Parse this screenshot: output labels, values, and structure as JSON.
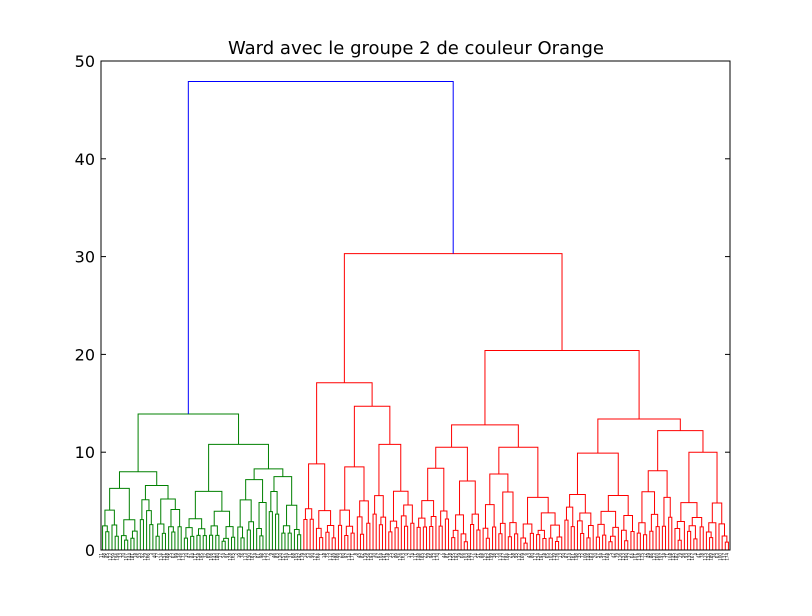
{
  "chart_data": {
    "type": "dendrogram",
    "title": "Ward avec le groupe 2 de couleur Orange",
    "xlabel": "",
    "ylabel": "",
    "ylim": [
      0,
      50
    ],
    "y_ticks": [
      0,
      10,
      20,
      30,
      40,
      50
    ],
    "grid": false,
    "colors": {
      "root_link": "#0000ff",
      "cluster_1": "#008000",
      "cluster_2": "#ff0000",
      "axes": "#000000"
    },
    "leaf_count": 200,
    "clusters": [
      {
        "color_key": "cluster_1",
        "leaf_range": [
          0,
          64
        ],
        "merges": [
          {
            "height": 13.9,
            "children": [
              "cluster_1.A",
              "cluster_1.B"
            ]
          },
          {
            "height": 10.8,
            "children": [
              "cluster_1.B1",
              "cluster_1.B2"
            ]
          },
          {
            "height": 8.0,
            "children": [
              "cluster_1.A1",
              "cluster_1.A2"
            ]
          },
          {
            "height": 8.3,
            "children": [
              "cluster_1.B2a",
              "cluster_1.B2b"
            ]
          }
        ]
      },
      {
        "color_key": "cluster_2",
        "leaf_range": [
          64,
          200
        ],
        "merges": [
          {
            "height": 30.3,
            "children": [
              "cluster_2.A",
              "cluster_2.B"
            ]
          },
          {
            "height": 20.4,
            "children": [
              "cluster_2.B1",
              "cluster_2.B2"
            ]
          },
          {
            "height": 17.1,
            "children": [
              "cluster_2.A1",
              "cluster_2.A2"
            ]
          },
          {
            "height": 14.7,
            "children": [
              "cluster_2.A2a",
              "cluster_2.A2b"
            ]
          },
          {
            "height": 13.4,
            "children": [
              "cluster_2.B2a",
              "cluster_2.B2b"
            ]
          },
          {
            "height": 12.8,
            "children": [
              "cluster_2.B1a",
              "cluster_2.B1b"
            ]
          },
          {
            "height": 12.2,
            "children": [
              "cluster_2.B2b1",
              "cluster_2.B2b2"
            ]
          },
          {
            "height": 10.8,
            "children": [
              "cluster_2.A2b1",
              "cluster_2.A2b2"
            ]
          },
          {
            "height": 10.5,
            "children": [
              "cluster_2.B1a1",
              "cluster_2.B1a2"
            ]
          },
          {
            "height": 10.5,
            "children": [
              "cluster_2.B1b1",
              "cluster_2.B1b2"
            ]
          },
          {
            "height": 9.9,
            "children": [
              "cluster_2.B2a1",
              "cluster_2.B2a2"
            ]
          },
          {
            "height": 10.0,
            "children": [
              "cluster_2.B2b2a",
              "cluster_2.B2b2b"
            ]
          },
          {
            "height": 8.8,
            "children": [
              "cluster_2.A1a",
              "cluster_2.A1b"
            ]
          }
        ]
      }
    ],
    "root": {
      "height": 47.9,
      "children": [
        "cluster_1",
        "cluster_2"
      ]
    }
  }
}
